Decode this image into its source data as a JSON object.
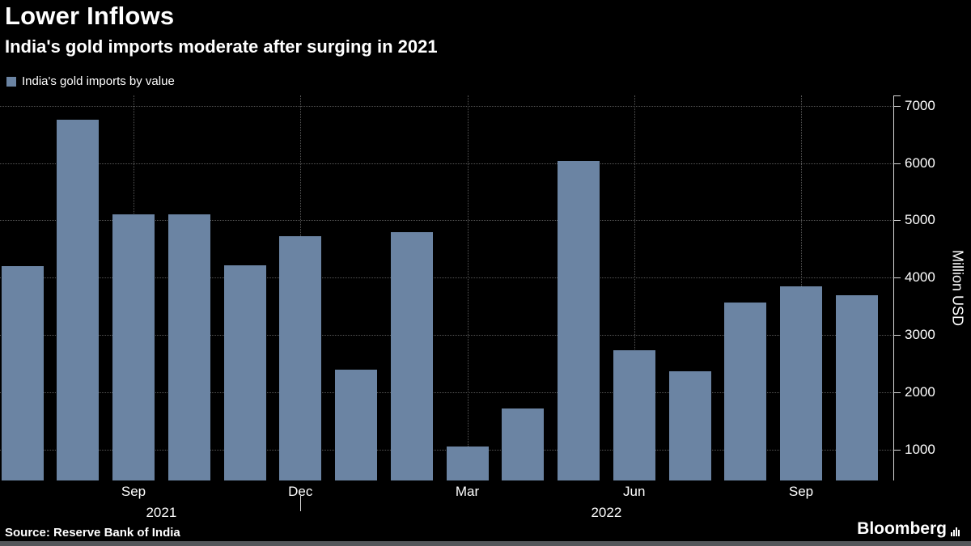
{
  "title": "Lower Inflows",
  "subtitle": "India's gold imports moderate after surging in 2021",
  "legend": {
    "label": "India's gold imports by value"
  },
  "source": "Source: Reserve Bank of India",
  "brand": "Bloomberg",
  "colors": {
    "background": "#000000",
    "bar": "#6b84a3",
    "grid": "#565656",
    "axis": "#d8d8d8",
    "text": "#ffffff",
    "footer_strip": "#54565a"
  },
  "chart_data": {
    "type": "bar",
    "title": "Lower Inflows",
    "subtitle": "India's gold imports moderate after surging in 2021",
    "series_name": "India's gold imports by value",
    "ylabel": "Million USD",
    "categories": [
      "Jul 2021",
      "Aug 2021",
      "Sep 2021",
      "Oct 2021",
      "Nov 2021",
      "Dec 2021",
      "Jan 2022",
      "Feb 2022",
      "Mar 2022",
      "Apr 2022",
      "May 2022",
      "Jun 2022",
      "Jul 2022",
      "Aug 2022",
      "Sep 2022",
      "Oct 2022"
    ],
    "values": [
      4200,
      6750,
      5110,
      5100,
      4220,
      4730,
      2400,
      4800,
      1050,
      1720,
      6030,
      2740,
      2370,
      3570,
      3850,
      3700
    ],
    "y_ticks": [
      1000,
      2000,
      3000,
      4000,
      5000,
      6000,
      7000
    ],
    "y_axis_min": 460,
    "y_axis_max": 7180,
    "x_tick_labels": [
      {
        "label": "Sep",
        "index": 2
      },
      {
        "label": "Dec",
        "index": 5
      },
      {
        "label": "Mar",
        "index": 8
      },
      {
        "label": "Jun",
        "index": 11
      },
      {
        "label": "Sep",
        "index": 14
      }
    ],
    "year_labels": [
      {
        "label": "2021",
        "start_index": 0,
        "end_index": 5
      },
      {
        "label": "2022",
        "start_index": 6,
        "end_index": 15
      }
    ],
    "grid": true,
    "legend_position": "top-left"
  }
}
